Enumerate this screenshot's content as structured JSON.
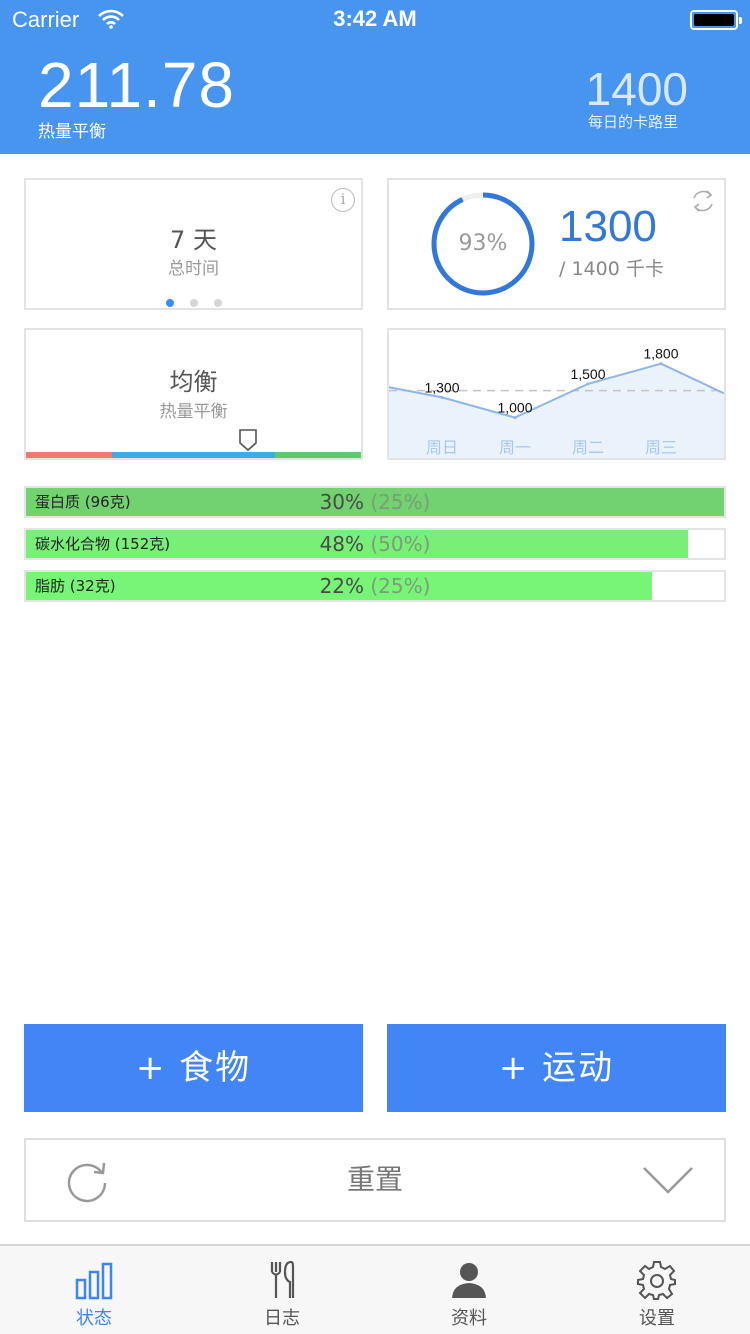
{
  "status_bar": {
    "carrier": "Carrier",
    "time": "3:42 AM"
  },
  "header": {
    "balance_value": "211.78",
    "balance_label": "热量平衡",
    "daily_value": "1400",
    "daily_label": "每日的卡路里"
  },
  "days_card": {
    "value": "7 天",
    "label": "总时间",
    "info": "i"
  },
  "progress_card": {
    "percent": "93%",
    "percent_value": 0.93,
    "consumed": "1300",
    "goal": "/ 1400 千卡"
  },
  "balance_card": {
    "title": "均衡",
    "subtitle": "热量平衡"
  },
  "chart_data": {
    "type": "line",
    "categories": [
      "周日",
      "周一",
      "周二",
      "周三"
    ],
    "values": [
      1300,
      1000,
      1500,
      1800
    ],
    "value_labels": [
      "1,300",
      "1,000",
      "1,500",
      "1,800"
    ],
    "reference_line": 1400,
    "ylim": [
      400,
      2300
    ],
    "title": "",
    "xlabel": "",
    "ylabel": ""
  },
  "macros": [
    {
      "name": "蛋白质 (96克)",
      "pct": "30%",
      "goal": "(25%)",
      "fill": 1.0,
      "color": "#72d270"
    },
    {
      "name": "碳水化合物 (152克)",
      "pct": "48%",
      "goal": "(50%)",
      "fill": 0.948,
      "color": "#78ef76"
    },
    {
      "name": "脂肪 (32克)",
      "pct": "22%",
      "goal": "(25%)",
      "fill": 0.897,
      "color": "#78f576"
    }
  ],
  "actions": {
    "add_food": "+ 食物",
    "add_exercise": "+ 运动",
    "reset": "重置"
  },
  "tabs": [
    {
      "label": "状态",
      "active": true
    },
    {
      "label": "日志",
      "active": false
    },
    {
      "label": "资料",
      "active": false
    },
    {
      "label": "设置",
      "active": false
    }
  ],
  "colors": {
    "header": "#4795ee",
    "accent": "#4286f5",
    "ring": "#3278d8"
  }
}
